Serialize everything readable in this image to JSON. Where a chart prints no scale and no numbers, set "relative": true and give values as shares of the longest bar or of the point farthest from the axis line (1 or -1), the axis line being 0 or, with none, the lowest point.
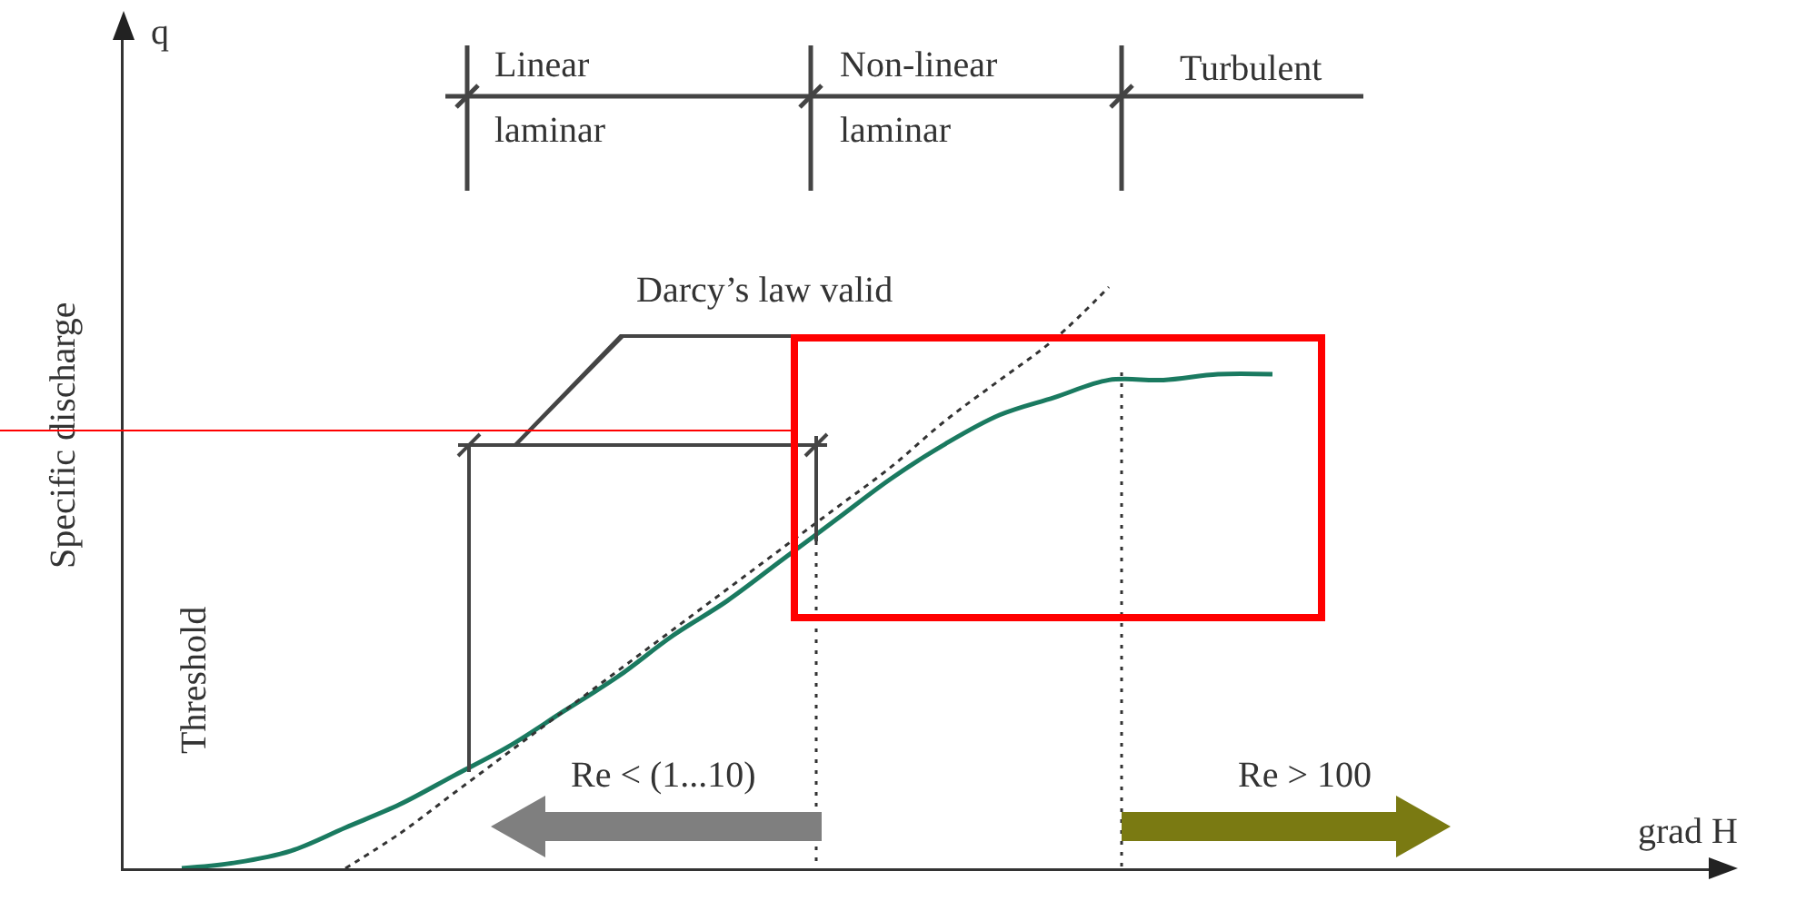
{
  "chart_data": {
    "type": "line",
    "relative": true,
    "categories": [
      null,
      null,
      null,
      null,
      null,
      null,
      null,
      null,
      null,
      null,
      null,
      null,
      null,
      null,
      null,
      null,
      null,
      null,
      null,
      null,
      null
    ],
    "series": [
      {
        "color": "#1a7a60",
        "values": [
          0,
          0.01,
          0.03,
          0.07,
          0.11,
          0.16,
          0.21,
          0.27,
          0.33,
          0.4,
          0.46,
          0.53,
          0.6,
          0.67,
          0.73,
          0.78,
          0.81,
          0.84,
          0.84,
          0.85,
          0.85
        ]
      },
      {
        "color": "#333333",
        "line_style": "dotted",
        "values": [
          null,
          null,
          null,
          0,
          0.06,
          0.13,
          0.2,
          0.27,
          0.34,
          0.41,
          0.48,
          0.55,
          0.62,
          0.69,
          0.77,
          0.84,
          0.91,
          1,
          null,
          null,
          null
        ]
      }
    ],
    "ylabel": "Specific discharge",
    "annotations": [
      "q",
      "grad H",
      "Threshold",
      "Linear laminar",
      "Non-linear laminar",
      "Turbulent",
      "Darcy’s law valid",
      "Re < (1...10)",
      "Re > 100"
    ]
  }
}
